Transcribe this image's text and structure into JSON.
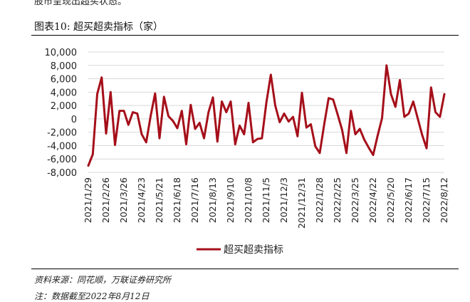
{
  "header": {
    "top_cut_text": "股市呈现出超买状态。",
    "figure_title": "图表10:  超买超卖指标（家）"
  },
  "footer": {
    "source": "资料来源：同花顺，万联证券研究所",
    "note": "注：数据截至2022年8月12日"
  },
  "colors": {
    "line": "#a50f1a",
    "grid": "#d9d9d9",
    "axis": "#595959"
  },
  "chart_data": {
    "type": "line",
    "title": "",
    "xlabel": "",
    "ylabel": "",
    "ylim": [
      -8000,
      10000
    ],
    "yticks": [
      10000,
      8000,
      6000,
      4000,
      2000,
      0,
      -2000,
      -4000,
      -6000,
      -8000
    ],
    "ytick_labels": [
      "10,000",
      "8,000",
      "6,000",
      "4,000",
      "2,000",
      "0",
      "-2,000",
      "-4,000",
      "-6,000",
      "-8,000"
    ],
    "grid": true,
    "legend_position": "bottom",
    "xtick_labels": [
      "2021/1/29",
      "2021/2/26",
      "2021/3/26",
      "2021/4/23",
      "2021/5/21",
      "2021/6/18",
      "2021/7/16",
      "2021/8/13",
      "2021/9/10",
      "2021/10/8",
      "2021/11/5",
      "2021/12/3",
      "2021/12/31",
      "2022/1/28",
      "2022/2/25",
      "2022/3/25",
      "2022/4/22",
      "2022/5/20",
      "2022/6/17",
      "2022/7/15",
      "2022/8/12"
    ],
    "series": [
      {
        "name": "超买超卖指标",
        "values": [
          -7000,
          -5300,
          3700,
          6200,
          -2200,
          4000,
          -3900,
          1200,
          1200,
          -900,
          1000,
          800,
          -2300,
          -3500,
          400,
          3800,
          -2900,
          3300,
          400,
          -300,
          -1400,
          1200,
          -3800,
          2100,
          -1500,
          -600,
          -2900,
          1000,
          3200,
          -3400,
          2600,
          1000,
          2600,
          -3800,
          -1000,
          -2300,
          2400,
          -3500,
          -3000,
          -2900,
          2400,
          6600,
          2000,
          -500,
          800,
          -400,
          300,
          -2600,
          3900,
          -1300,
          -800,
          -4100,
          -5100,
          -800,
          3100,
          2900,
          700,
          -1600,
          -5100,
          1200,
          -2300,
          -1500,
          -3100,
          -4300,
          -5400,
          -2500,
          100,
          8000,
          3700,
          1800,
          5800,
          300,
          800,
          2600,
          100,
          -2400,
          -4400,
          4700,
          1000,
          300,
          3700
        ]
      }
    ]
  }
}
